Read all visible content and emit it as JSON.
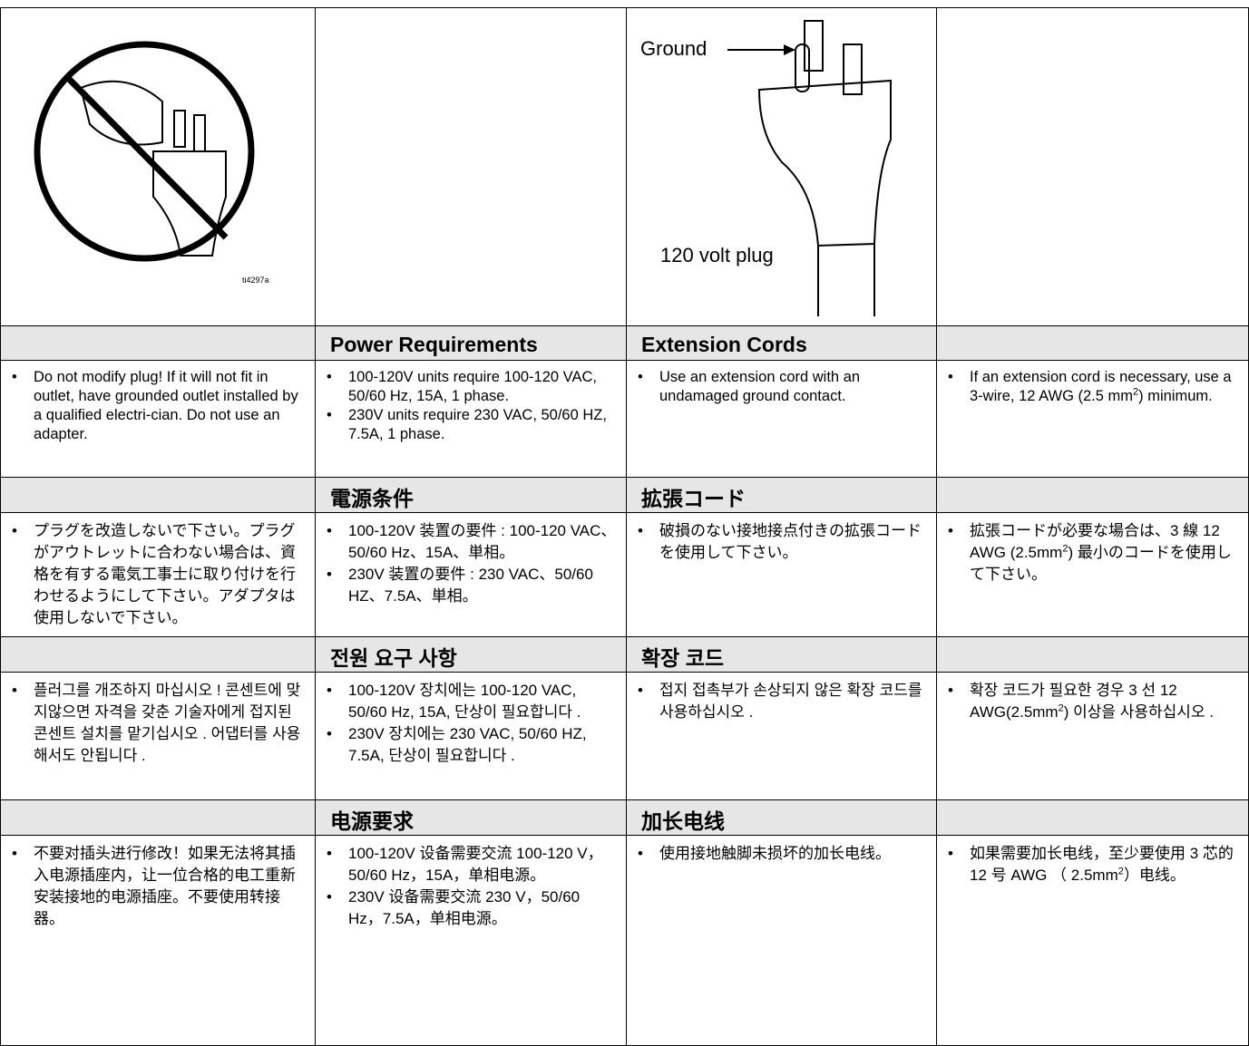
{
  "figures": {
    "no_adapter": {
      "label": "ti4297a"
    },
    "plug": {
      "ground": "Ground",
      "caption": "120 volt plug"
    }
  },
  "sections": [
    {
      "power_title": "Power Requirements",
      "extension_title": "Extension Cords",
      "plug_notes": [
        "Do not modify plug! If it will not fit in outlet, have grounded outlet installed by a qualified electri-cian. Do not use an adapter."
      ],
      "power_notes": [
        "100-120V units require 100-120 VAC, 50/60 Hz, 15A, 1 phase.",
        "230V units require 230 VAC, 50/60 HZ, 7.5A, 1 phase."
      ],
      "extension_notes": [
        "Use an extension cord with an undamaged ground contact."
      ],
      "cord_notes": [
        {
          "text": "If an extension cord is necessary, use a 3-wire, 12 AWG (2.5 mm",
          "sup": "2",
          "after": ") minimum."
        }
      ]
    },
    {
      "power_title": "電源条件",
      "extension_title": "拡張コード",
      "plug_notes": [
        "プラグを改造しないで下さい。プラグがアウトレットに合わない場合は、資格を有する電気工事士に取り付けを行わせるようにして下さい。アダプタは使用しないで下さい。"
      ],
      "power_notes": [
        "100-120V 装置の要件 : 100-120 VAC、50/60 Hz、15A、単相。",
        "230V 装置の要件 : 230 VAC、50/60 HZ、7.5A、単相。"
      ],
      "extension_notes": [
        "破損のない接地接点付きの拡張コードを使用して下さい。"
      ],
      "cord_notes": [
        {
          "text": "拡張コードが必要な場合は、3 線 12 AWG (2.5mm",
          "sup": "2",
          "after": ") 最小のコードを使用して下さい。"
        }
      ]
    },
    {
      "power_title": "전원 요구 사항",
      "extension_title": "확장 코드",
      "plug_notes": [
        "플러그를 개조하지 마십시오 ! 콘센트에 맞지않으면 자격을 갖춘 기술자에게 접지된 콘센트 설치를 맡기십시오 . 어댑터를 사용해서도 안됩니다 ."
      ],
      "power_notes": [
        "100-120V 장치에는 100-120 VAC, 50/60 Hz, 15A, 단상이 필요합니다 .",
        "230V 장치에는 230 VAC, 50/60 HZ, 7.5A, 단상이 필요합니다 ."
      ],
      "extension_notes": [
        "접지 접촉부가 손상되지 않은 확장 코드를 사용하십시오 ."
      ],
      "cord_notes": [
        {
          "text": "확장 코드가 필요한 경우 3 선 12 AWG(2.5mm",
          "sup": "2",
          "after": ") 이상을 사용하십시오 ."
        }
      ]
    },
    {
      "power_title": "电源要求",
      "extension_title": "加长电线",
      "plug_notes": [
        "不要对插头进行修改！如果无法将其插入电源插座内，让一位合格的电工重新安装接地的电源插座。不要使用转接器。"
      ],
      "power_notes": [
        "100-120V 设备需要交流 100-120 V，50/60 Hz，15A，单相电源。",
        "230V 设备需要交流 230 V，50/60 Hz，7.5A，单相电源。"
      ],
      "extension_notes": [
        "使用接地触脚未损坏的加长电线。"
      ],
      "cord_notes": [
        {
          "text": "如果需要加长电线，至少要使用 3 芯的 12 号 AWG （ 2.5mm",
          "sup": "2",
          "after": "）电线。"
        }
      ]
    }
  ]
}
